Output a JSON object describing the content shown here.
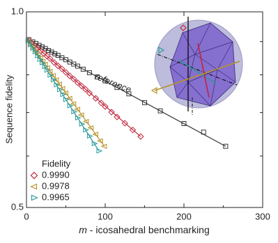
{
  "chart_data": {
    "type": "scatter",
    "xlabel_var": "m",
    "xlabel": " - icosahedral benchmarking",
    "ylabel": "Sequence fidelity",
    "legend_title": "Fidelity",
    "xlim": [
      0,
      300
    ],
    "xticks": [
      0,
      100,
      200,
      300
    ],
    "xminor": [
      50,
      150,
      250
    ],
    "ylim": [
      0.5,
      1.0
    ],
    "yticks": [
      0.5,
      {
        "value": 1.0,
        "label": "1.0"
      }
    ],
    "yminor": [
      0.6,
      0.7,
      0.8,
      0.9
    ],
    "log_scale_y": true,
    "series": [
      {
        "name": "reference",
        "legend": false,
        "color": "#333333",
        "marker": "square",
        "x": [
          3,
          8,
          12,
          16,
          20,
          24,
          28,
          32,
          36,
          40,
          45,
          50,
          55,
          60,
          65,
          72,
          80,
          90,
          100,
          115,
          130,
          150,
          170,
          200,
          225,
          253
        ],
        "values": [
          0.906,
          0.899,
          0.894,
          0.888,
          0.883,
          0.878,
          0.872,
          0.867,
          0.862,
          0.857,
          0.85,
          0.844,
          0.837,
          0.831,
          0.825,
          0.816,
          0.806,
          0.794,
          0.783,
          0.765,
          0.748,
          0.725,
          0.704,
          0.673,
          0.653,
          0.621
        ],
        "fit_x": [
          0,
          253
        ],
        "fit_values": [
          0.91,
          0.621
        ]
      },
      {
        "name": "0.9990",
        "legend": true,
        "color": "#c0243a",
        "marker": "diamond",
        "x": [
          3,
          6,
          10,
          14,
          18,
          22,
          26,
          30,
          35,
          40,
          45,
          50,
          55,
          60,
          65,
          70,
          75,
          80,
          88,
          95,
          100,
          108,
          115,
          125,
          135,
          145
        ],
        "values": [
          0.903,
          0.897,
          0.888,
          0.88,
          0.871,
          0.863,
          0.855,
          0.847,
          0.836,
          0.826,
          0.817,
          0.807,
          0.797,
          0.788,
          0.778,
          0.769,
          0.76,
          0.75,
          0.736,
          0.724,
          0.715,
          0.701,
          0.689,
          0.674,
          0.658,
          0.643
        ],
        "fit_x": [
          0,
          145
        ],
        "fit_values": [
          0.91,
          0.643
        ]
      },
      {
        "name": "0.9978",
        "legend": true,
        "color": "#b8922a",
        "marker": "tri-left",
        "x": [
          3,
          6,
          9,
          12,
          15,
          18,
          21,
          24,
          27,
          30,
          34,
          38,
          42,
          46,
          50,
          55,
          60,
          65,
          70,
          76,
          82,
          88,
          94,
          99
        ],
        "values": [
          0.9,
          0.889,
          0.879,
          0.869,
          0.859,
          0.849,
          0.839,
          0.83,
          0.82,
          0.81,
          0.798,
          0.786,
          0.774,
          0.762,
          0.75,
          0.736,
          0.722,
          0.708,
          0.694,
          0.678,
          0.663,
          0.648,
          0.633,
          0.621
        ],
        "fit_x": [
          0,
          99
        ],
        "fit_values": [
          0.91,
          0.621
        ]
      },
      {
        "name": "0.9965",
        "legend": true,
        "color": "#2a9a9a",
        "marker": "tri-right",
        "x": [
          2,
          5,
          8,
          11,
          14,
          17,
          20,
          23,
          26,
          30,
          34,
          38,
          42,
          46,
          50,
          55,
          60,
          65,
          70,
          75,
          80,
          86,
          92
        ],
        "values": [
          0.902,
          0.89,
          0.879,
          0.868,
          0.856,
          0.845,
          0.835,
          0.824,
          0.813,
          0.799,
          0.786,
          0.772,
          0.759,
          0.746,
          0.733,
          0.717,
          0.702,
          0.687,
          0.672,
          0.658,
          0.644,
          0.627,
          0.611
        ],
        "fit_x": [
          0,
          92
        ],
        "fit_values": [
          0.91,
          0.611
        ]
      }
    ]
  }
}
